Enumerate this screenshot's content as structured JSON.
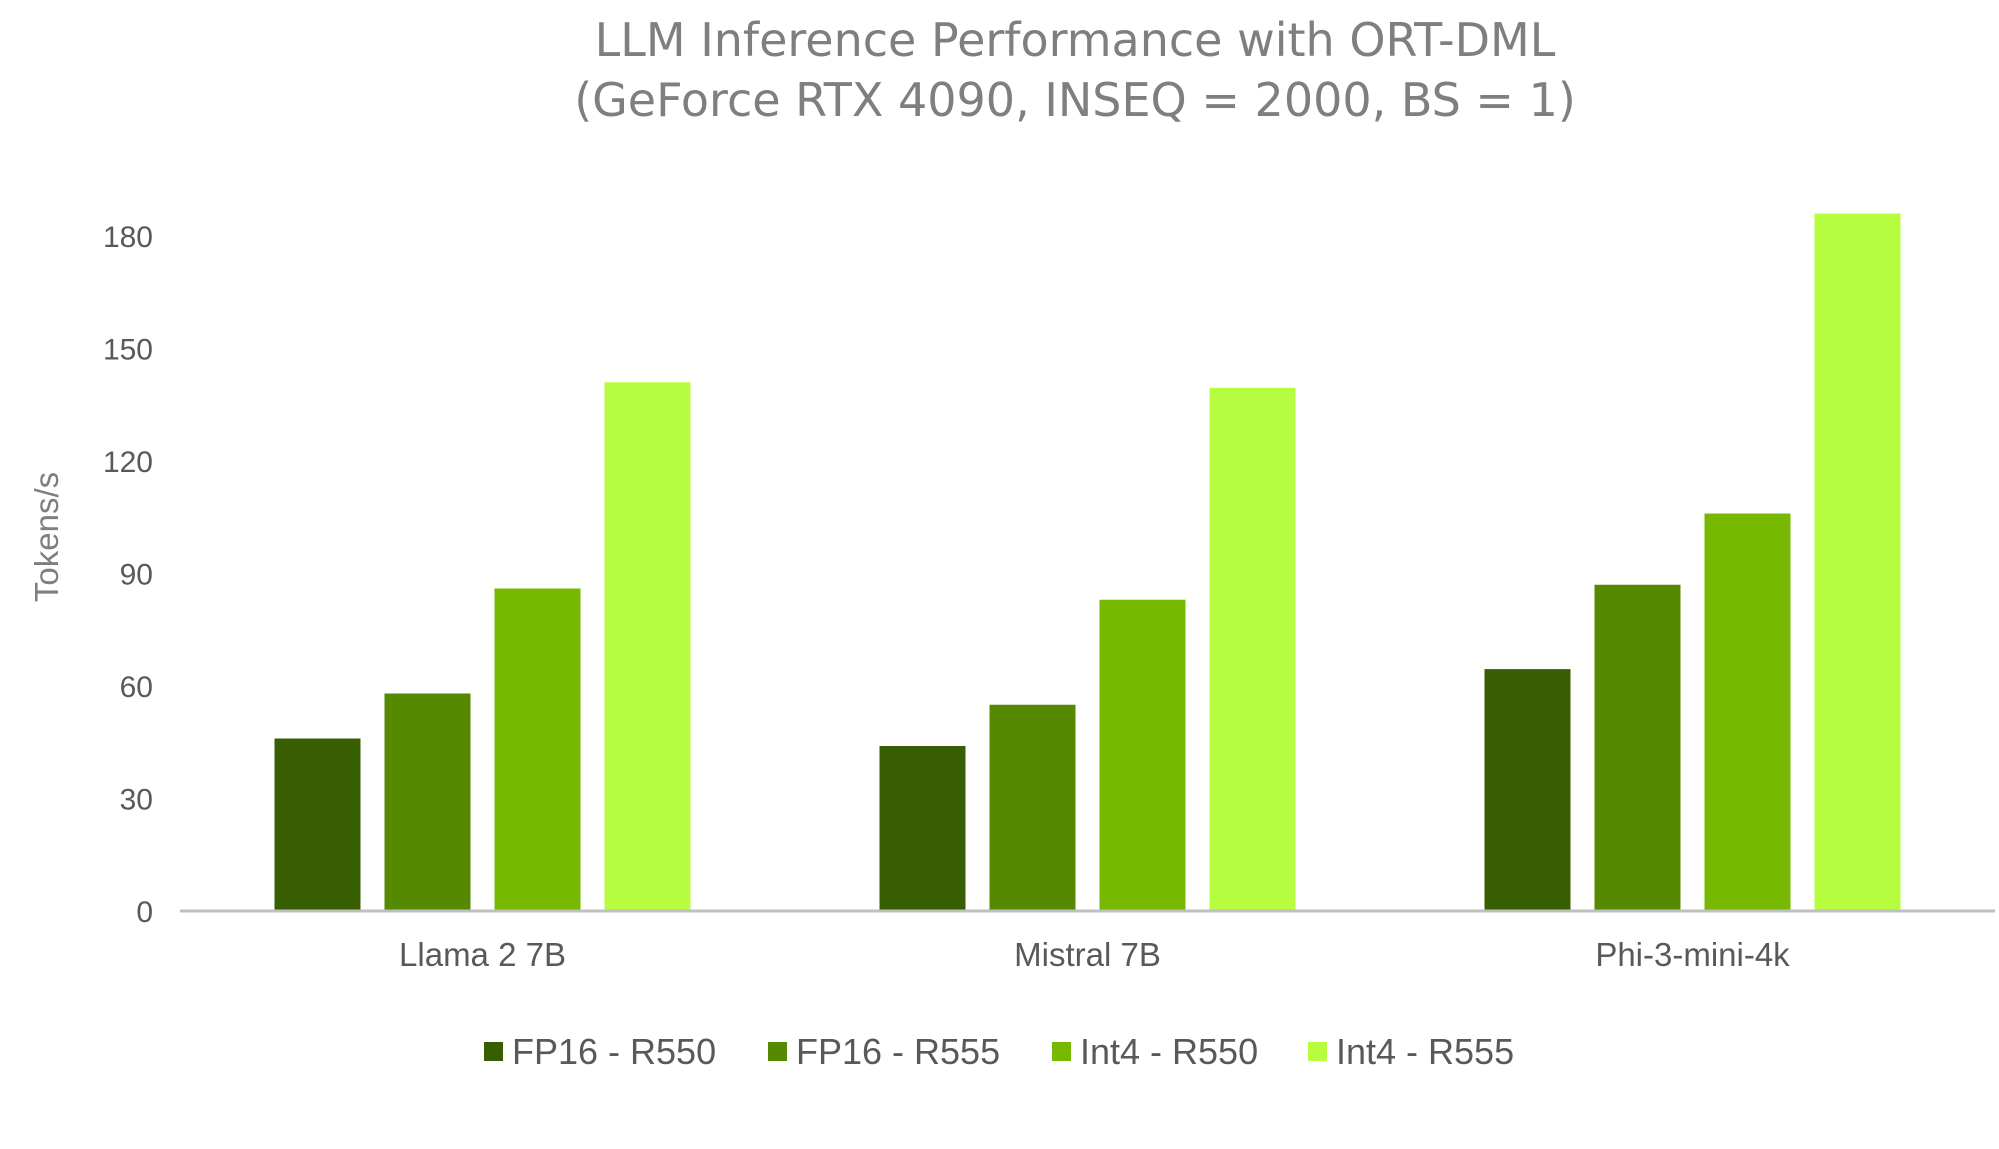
{
  "chart_data": {
    "type": "bar",
    "title": "LLM Inference Performance with ORT-DML",
    "subtitle": "(GeForce RTX 4090, INSEQ = 2000, BS = 1)",
    "xlabel": "",
    "ylabel": "Tokens/s",
    "ylim": [
      0,
      180
    ],
    "yticks": [
      0,
      30,
      60,
      90,
      120,
      150,
      180
    ],
    "categories": [
      "Llama 2 7B",
      "Mistral 7B",
      "Phi-3-mini-4k"
    ],
    "series": [
      {
        "name": "FP16 - R550",
        "color": "#375e00",
        "values": [
          46,
          44,
          64.5
        ]
      },
      {
        "name": "FP16 - R555",
        "color": "#558900",
        "values": [
          58,
          55,
          87
        ]
      },
      {
        "name": "Int4 - R550",
        "color": "#76b900",
        "values": [
          86,
          83,
          106
        ]
      },
      {
        "name": "Int4 - R555",
        "color": "#b7fd3f",
        "values": [
          141,
          139.5,
          186
        ]
      }
    ],
    "grid": false,
    "legend_position": "bottom",
    "axis_color": "#bfbfbf"
  }
}
